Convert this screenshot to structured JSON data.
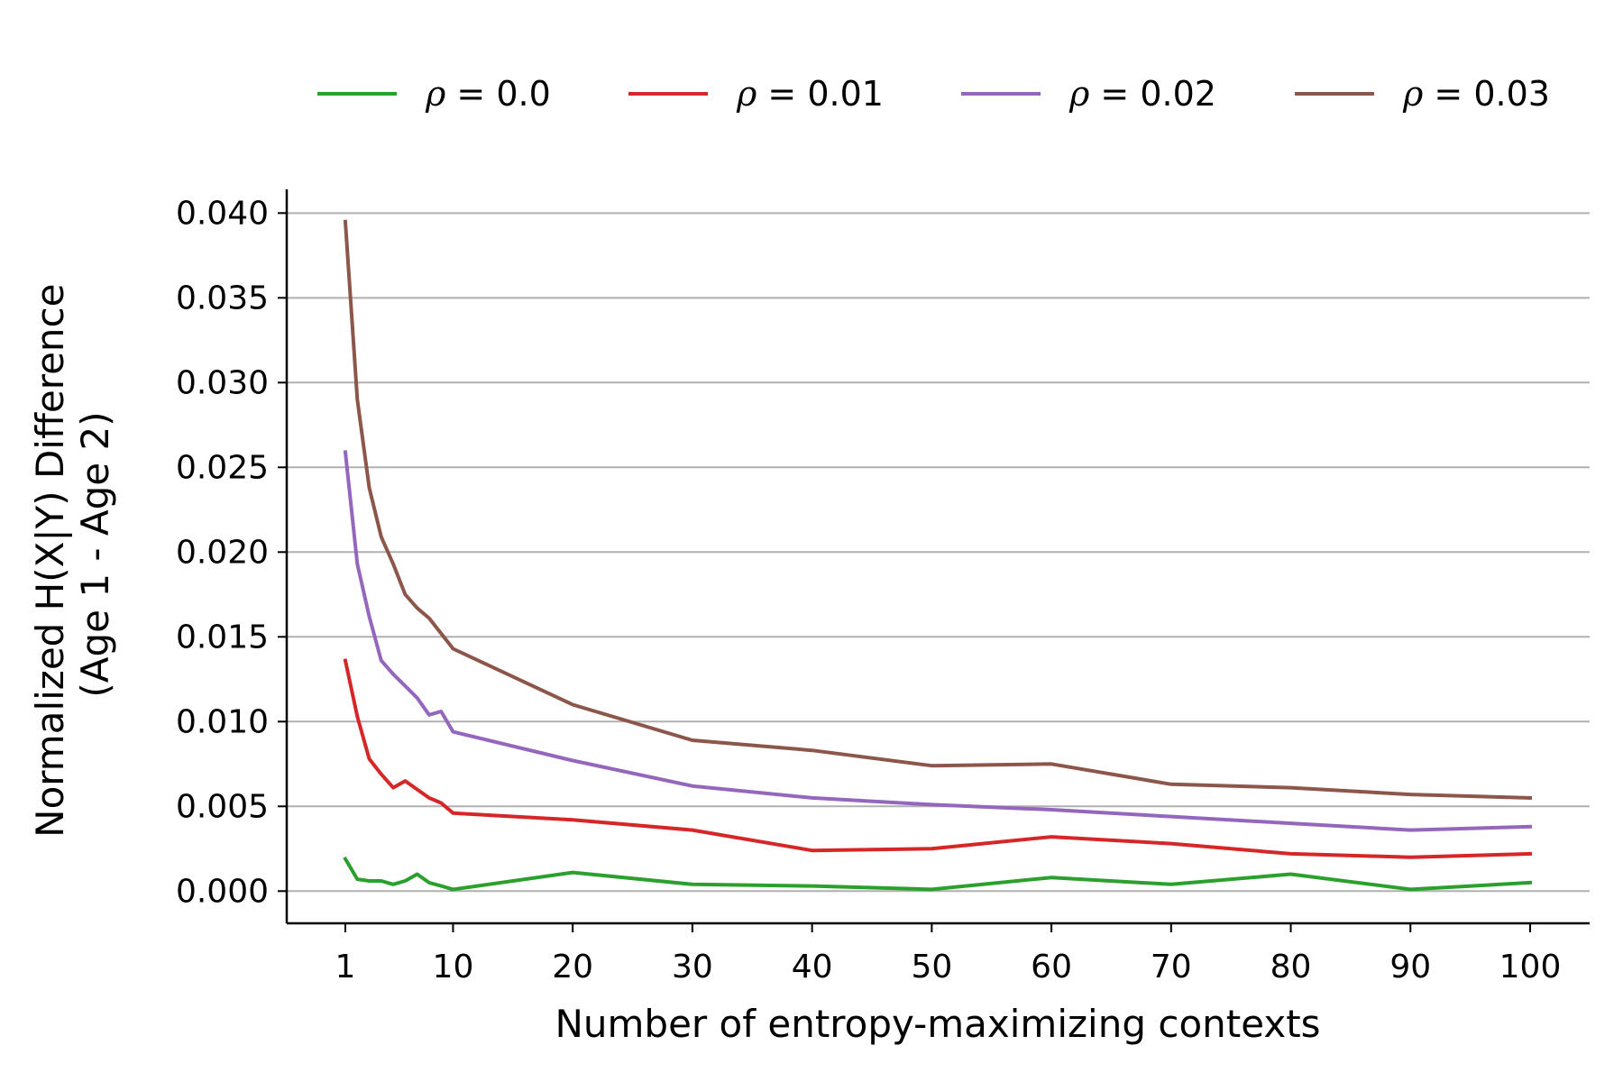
{
  "chart_data": {
    "type": "line",
    "title": "",
    "xlabel": "Number of entropy-maximizing contexts",
    "ylabel_lines": [
      "Normalized H(X|Y) Difference",
      "(Age 1 - Age 2)"
    ],
    "xlim": [
      1,
      100
    ],
    "ylim": [
      -0.0019,
      0.0414
    ],
    "x_ticks": [
      1,
      10,
      20,
      30,
      40,
      50,
      60,
      70,
      80,
      90,
      100
    ],
    "x_tick_labels": [
      "1",
      "10",
      "20",
      "30",
      "40",
      "50",
      "60",
      "70",
      "80",
      "90",
      "100"
    ],
    "y_ticks": [
      0.0,
      0.005,
      0.01,
      0.015,
      0.02,
      0.025,
      0.03,
      0.035,
      0.04
    ],
    "y_tick_labels": [
      "0.000",
      "0.005",
      "0.010",
      "0.015",
      "0.020",
      "0.025",
      "0.030",
      "0.035",
      "0.040"
    ],
    "grid": "horizontal",
    "legend_position": "top",
    "x": [
      1,
      2,
      3,
      4,
      5,
      6,
      7,
      8,
      9,
      10,
      20,
      30,
      40,
      50,
      60,
      70,
      80,
      90,
      100
    ],
    "series": [
      {
        "name": "ρ = 0.0",
        "color": "#2ca02c",
        "values": [
          0.0019,
          0.0007,
          0.0006,
          0.0006,
          0.0004,
          0.0006,
          0.001,
          0.0005,
          0.0003,
          0.0001,
          0.0011,
          0.0004,
          0.0003,
          0.0001,
          0.0008,
          0.0004,
          0.001,
          0.0001,
          0.0005
        ]
      },
      {
        "name": "ρ = 0.01",
        "color": "#d62728",
        "values": [
          0.0136,
          0.0103,
          0.0078,
          0.0069,
          0.0061,
          0.0065,
          0.006,
          0.0055,
          0.0052,
          0.0046,
          0.0042,
          0.0036,
          0.0024,
          0.0025,
          0.0032,
          0.0028,
          0.0022,
          0.002,
          0.0022
        ]
      },
      {
        "name": "ρ = 0.02",
        "color": "#9467bd",
        "values": [
          0.0259,
          0.0193,
          0.0162,
          0.0136,
          0.0128,
          0.0121,
          0.0114,
          0.0104,
          0.0106,
          0.0094,
          0.0077,
          0.0062,
          0.0055,
          0.0051,
          0.0048,
          0.0044,
          0.004,
          0.0036,
          0.0038
        ]
      },
      {
        "name": "ρ = 0.03",
        "color": "#8c564b",
        "values": [
          0.0395,
          0.029,
          0.0238,
          0.0209,
          0.0193,
          0.0175,
          0.0167,
          0.0161,
          0.0152,
          0.0143,
          0.011,
          0.0089,
          0.0083,
          0.0074,
          0.0075,
          0.0063,
          0.0061,
          0.0057,
          0.0055
        ]
      }
    ]
  }
}
